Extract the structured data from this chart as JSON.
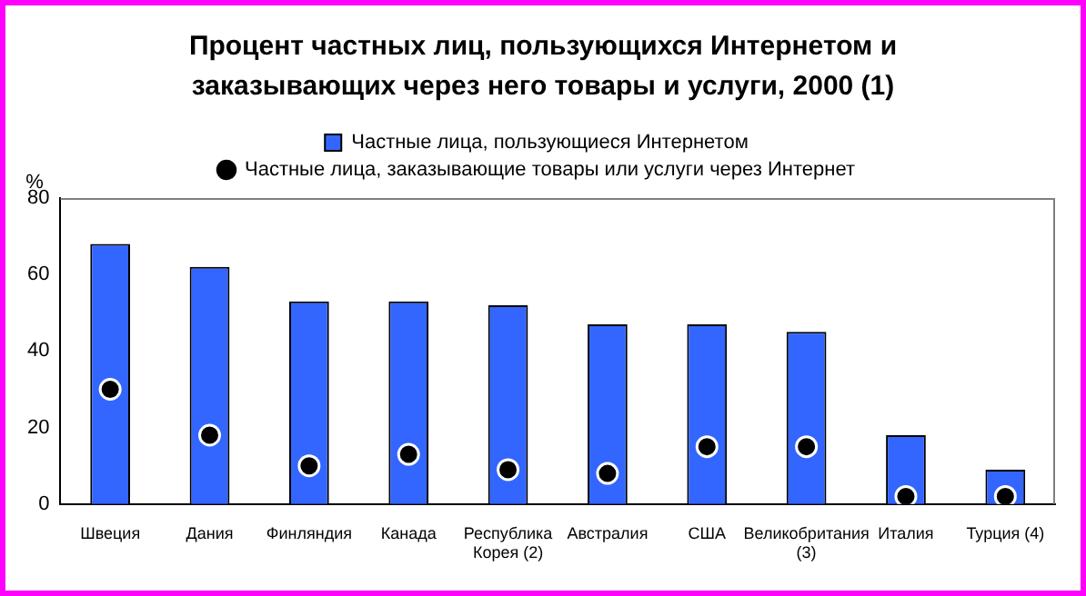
{
  "chart_data": {
    "type": "bar",
    "title": "Процент частных лиц, пользующихся Интернетом и заказывающих через него товары и услуги, 2000 (1)",
    "ylabel": "%",
    "categories": [
      "Швеция",
      "Дания",
      "Финляндия",
      "Канада",
      "Республика Корея (2)",
      "Австралия",
      "США",
      "Великобритания (3)",
      "Италия",
      "Турция (4)"
    ],
    "series": [
      {
        "name": "Частные лица, пользующиеся Интернетом",
        "color": "#3366ff",
        "values": [
          68,
          62,
          53,
          53,
          52,
          47,
          47,
          45,
          18,
          9
        ]
      },
      {
        "name": "Частные лица, заказывающие товары или услуги через Интернет",
        "type": "scatter",
        "color": "#000000",
        "values": [
          30,
          18,
          10,
          13,
          9,
          8,
          15,
          15,
          2,
          2
        ]
      }
    ],
    "ylim": [
      0,
      80
    ],
    "yticks": [
      0,
      20,
      40,
      60,
      80
    ],
    "grid": false,
    "legend": "top",
    "marker": "circle"
  }
}
